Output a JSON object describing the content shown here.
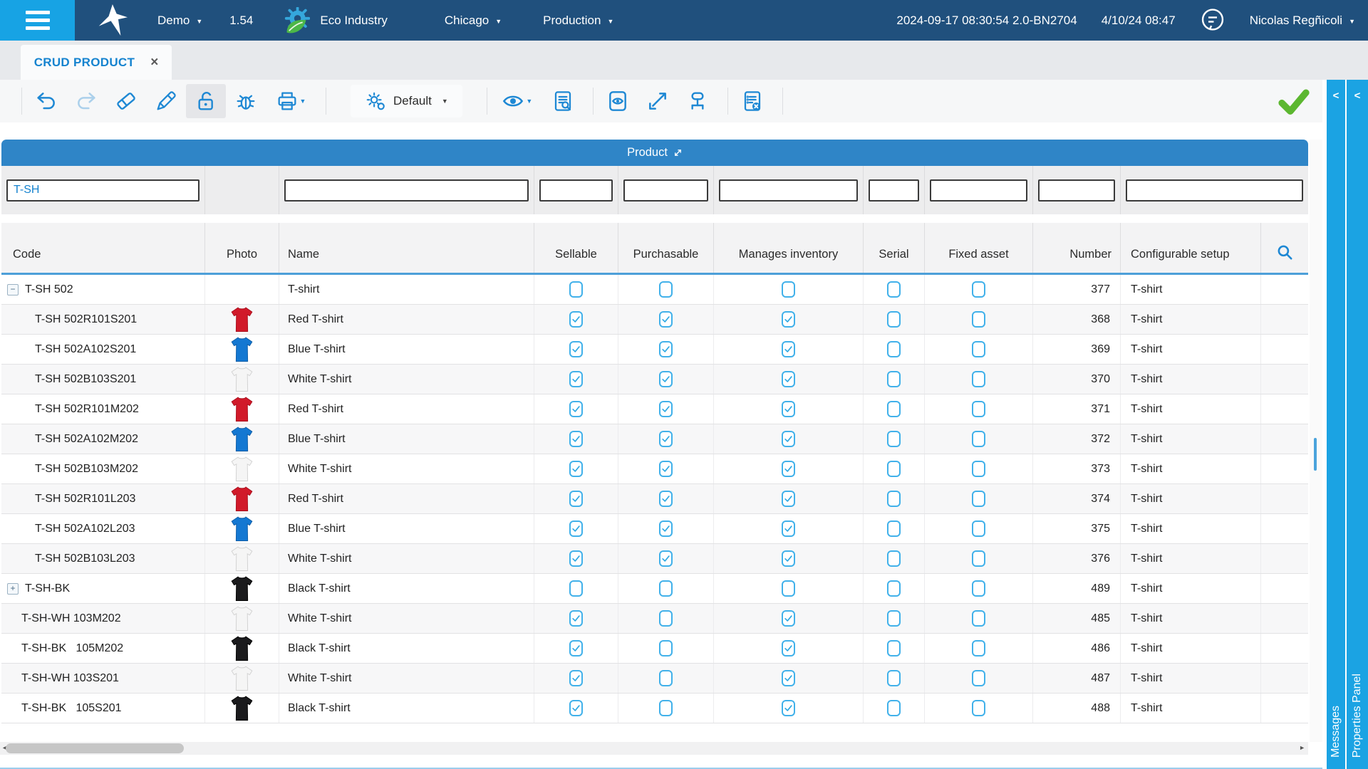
{
  "topbar": {
    "demo_label": "Demo",
    "version": "1.54",
    "company": "Eco Industry",
    "site": "Chicago",
    "environment": "Production",
    "system_datetime": "2024-09-17 08:30:54 2.0-BN2704",
    "local_datetime": "4/10/24 08:47",
    "user_name": "Nicolas Regñicoli"
  },
  "tab": {
    "label": "CRUD PRODUCT",
    "close_glyph": "×"
  },
  "toolbar": {
    "profile_label": "Default",
    "icons": [
      "undo",
      "redo",
      "eraser",
      "edit",
      "unlock",
      "debug",
      "print",
      "settings",
      "preview",
      "document-search",
      "record-view",
      "expand",
      "hierarchy",
      "list-cancel",
      "confirm"
    ]
  },
  "table": {
    "title": "Product",
    "columns": [
      {
        "key": "code",
        "label": "Code",
        "filter": true,
        "filter_value": "T-SH"
      },
      {
        "key": "photo",
        "label": "Photo",
        "filter": false,
        "filter_value": ""
      },
      {
        "key": "name",
        "label": "Name",
        "filter": true,
        "filter_value": ""
      },
      {
        "key": "sellable",
        "label": "Sellable",
        "filter": true,
        "filter_value": ""
      },
      {
        "key": "purchasable",
        "label": "Purchasable",
        "filter": true,
        "filter_value": ""
      },
      {
        "key": "manages_inventory",
        "label": "Manages inventory",
        "filter": true,
        "filter_value": ""
      },
      {
        "key": "serial",
        "label": "Serial",
        "filter": true,
        "filter_value": ""
      },
      {
        "key": "fixed_asset",
        "label": "Fixed asset",
        "filter": true,
        "filter_value": ""
      },
      {
        "key": "number",
        "label": "Number",
        "filter": true,
        "filter_value": ""
      },
      {
        "key": "configurable_setup",
        "label": "Configurable setup",
        "filter": true,
        "filter_value": ""
      }
    ],
    "photo_colors": {
      "red": {
        "fill": "#d11a2a",
        "stroke": "#a90e1c"
      },
      "blue": {
        "fill": "#1478d2",
        "stroke": "#0f5da6"
      },
      "white": {
        "fill": "#f5f5f5",
        "stroke": "#d2d2d2"
      },
      "black": {
        "fill": "#1b1b1d",
        "stroke": "#000000"
      }
    },
    "rows": [
      {
        "indent": 0,
        "expander": "collapse",
        "code": "T-SH 502",
        "photo": null,
        "name": "T-shirt",
        "sellable": false,
        "purchasable": false,
        "manages_inventory": false,
        "serial": false,
        "fixed_asset": false,
        "number": "377",
        "configurable_setup": "T-shirt"
      },
      {
        "indent": 1,
        "expander": null,
        "code": "T-SH 502R101S201",
        "photo": "red",
        "name": "Red T-shirt",
        "sellable": true,
        "purchasable": true,
        "manages_inventory": true,
        "serial": false,
        "fixed_asset": false,
        "number": "368",
        "configurable_setup": "T-shirt"
      },
      {
        "indent": 1,
        "expander": null,
        "code": "T-SH 502A102S201",
        "photo": "blue",
        "name": "Blue T-shirt",
        "sellable": true,
        "purchasable": true,
        "manages_inventory": true,
        "serial": false,
        "fixed_asset": false,
        "number": "369",
        "configurable_setup": "T-shirt"
      },
      {
        "indent": 1,
        "expander": null,
        "code": "T-SH 502B103S201",
        "photo": "white",
        "name": "White T-shirt",
        "sellable": true,
        "purchasable": true,
        "manages_inventory": true,
        "serial": false,
        "fixed_asset": false,
        "number": "370",
        "configurable_setup": "T-shirt"
      },
      {
        "indent": 1,
        "expander": null,
        "code": "T-SH 502R101M202",
        "photo": "red",
        "name": "Red T-shirt",
        "sellable": true,
        "purchasable": true,
        "manages_inventory": true,
        "serial": false,
        "fixed_asset": false,
        "number": "371",
        "configurable_setup": "T-shirt"
      },
      {
        "indent": 1,
        "expander": null,
        "code": "T-SH 502A102M202",
        "photo": "blue",
        "name": "Blue T-shirt",
        "sellable": true,
        "purchasable": true,
        "manages_inventory": true,
        "serial": false,
        "fixed_asset": false,
        "number": "372",
        "configurable_setup": "T-shirt"
      },
      {
        "indent": 1,
        "expander": null,
        "code": "T-SH 502B103M202",
        "photo": "white",
        "name": "White T-shirt",
        "sellable": true,
        "purchasable": true,
        "manages_inventory": true,
        "serial": false,
        "fixed_asset": false,
        "number": "373",
        "configurable_setup": "T-shirt"
      },
      {
        "indent": 1,
        "expander": null,
        "code": "T-SH 502R101L203",
        "photo": "red",
        "name": "Red T-shirt",
        "sellable": true,
        "purchasable": true,
        "manages_inventory": true,
        "serial": false,
        "fixed_asset": false,
        "number": "374",
        "configurable_setup": "T-shirt"
      },
      {
        "indent": 1,
        "expander": null,
        "code": "T-SH 502A102L203",
        "photo": "blue",
        "name": "Blue T-shirt",
        "sellable": true,
        "purchasable": true,
        "manages_inventory": true,
        "serial": false,
        "fixed_asset": false,
        "number": "375",
        "configurable_setup": "T-shirt"
      },
      {
        "indent": 1,
        "expander": null,
        "code": "T-SH 502B103L203",
        "photo": "white",
        "name": "White T-shirt",
        "sellable": true,
        "purchasable": true,
        "manages_inventory": true,
        "serial": false,
        "fixed_asset": false,
        "number": "376",
        "configurable_setup": "T-shirt"
      },
      {
        "indent": 0,
        "expander": "expand",
        "code": "T-SH-BK",
        "photo": "black",
        "name": "Black T-shirt",
        "sellable": false,
        "purchasable": false,
        "manages_inventory": false,
        "serial": false,
        "fixed_asset": false,
        "number": "489",
        "configurable_setup": "T-shirt"
      },
      {
        "indent": 0,
        "expander": null,
        "code": "T-SH-WH 103M202",
        "photo": "white",
        "name": "White T-shirt",
        "sellable": true,
        "purchasable": false,
        "manages_inventory": true,
        "serial": false,
        "fixed_asset": false,
        "number": "485",
        "configurable_setup": "T-shirt"
      },
      {
        "indent": 0,
        "expander": null,
        "code": "T-SH-BK   105M202",
        "photo": "black",
        "name": "Black T-shirt",
        "sellable": true,
        "purchasable": false,
        "manages_inventory": true,
        "serial": false,
        "fixed_asset": false,
        "number": "486",
        "configurable_setup": "T-shirt"
      },
      {
        "indent": 0,
        "expander": null,
        "code": "T-SH-WH 103S201",
        "photo": "white",
        "name": "White T-shirt",
        "sellable": true,
        "purchasable": false,
        "manages_inventory": true,
        "serial": false,
        "fixed_asset": false,
        "number": "487",
        "configurable_setup": "T-shirt"
      },
      {
        "indent": 0,
        "expander": null,
        "code": "T-SH-BK   105S201",
        "photo": "black",
        "name": "Black T-shirt",
        "sellable": true,
        "purchasable": false,
        "manages_inventory": true,
        "serial": false,
        "fixed_asset": false,
        "number": "488",
        "configurable_setup": "T-shirt"
      }
    ]
  },
  "panels": {
    "messages_label": "Messages",
    "properties_label": "Properties Panel",
    "collapse_glyph": "<"
  },
  "colors": {
    "accent_blue": "#1e88d4",
    "panel_blue": "#1ba3e3",
    "topbar_navy": "#20507d",
    "header_bar_blue": "#2f85c7",
    "checkbox_blue": "#41b1ea",
    "success_green": "#5cb730"
  }
}
